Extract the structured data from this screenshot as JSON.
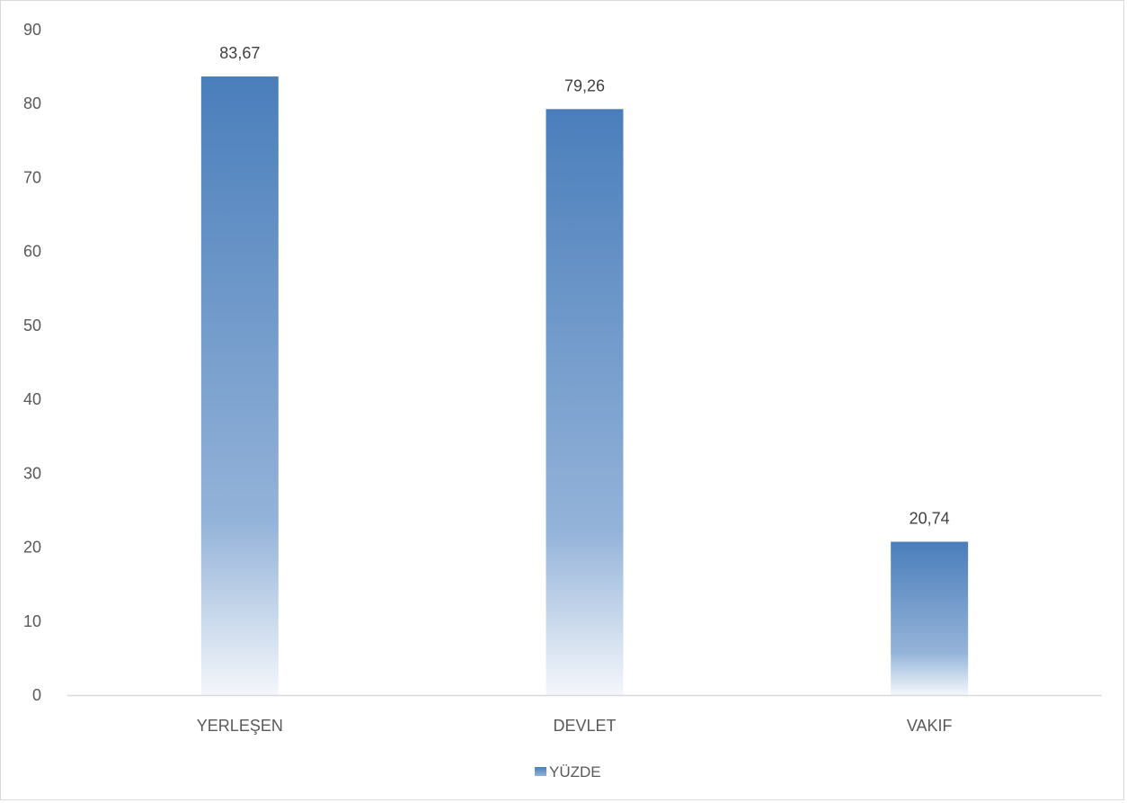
{
  "chart_data": {
    "type": "bar",
    "categories": [
      "YERLEŞEN",
      "DEVLET",
      "VAKIF"
    ],
    "series": [
      {
        "name": "YÜZDE",
        "values": [
          83.67,
          79.26,
          20.74
        ],
        "data_labels": [
          "83,67",
          "79,26",
          "20,74"
        ]
      }
    ],
    "ylim": [
      0,
      90
    ],
    "yticks": [
      0,
      10,
      20,
      30,
      40,
      50,
      60,
      70,
      80,
      90
    ],
    "grid": false,
    "legend": "bottom-center",
    "colors": {
      "bar_top": "#4a7ebb",
      "bar_mid": "#94b3d9",
      "bar_bottom": "#f4f7fb",
      "axis": "#d9d9d9",
      "text": "#595959",
      "label": "#404040"
    }
  }
}
